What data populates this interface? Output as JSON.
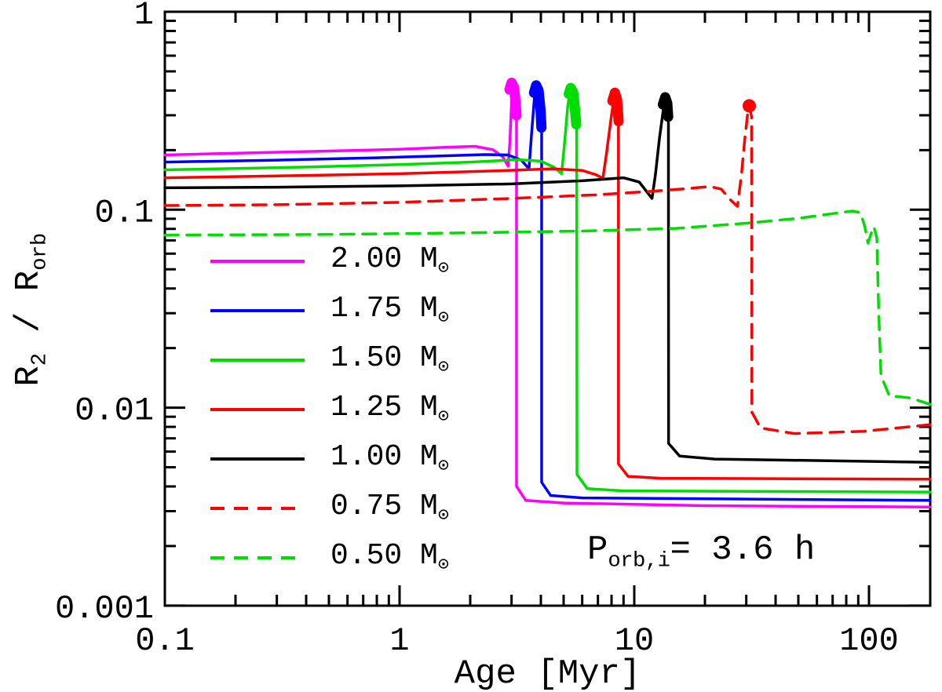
{
  "labels": {
    "x_axis": "Age [Myr]",
    "y_axis_parts": {
      "r1": "R",
      "sub1": "2",
      "mid": " / ",
      "r2": "R",
      "sub2": "orb"
    }
  },
  "annotation": {
    "p": "P",
    "sub": "orb,i",
    "rest": "= 3.6 h"
  },
  "legend": {
    "position": "left-middle",
    "items": [
      {
        "mass": "2.00",
        "unit": "M",
        "unit_sub": "⊙",
        "color": "#ff00ff",
        "dash": "solid"
      },
      {
        "mass": "1.75",
        "unit": "M",
        "unit_sub": "⊙",
        "color": "#0000ff",
        "dash": "solid"
      },
      {
        "mass": "1.50",
        "unit": "M",
        "unit_sub": "⊙",
        "color": "#00dd00",
        "dash": "solid"
      },
      {
        "mass": "1.25",
        "unit": "M",
        "unit_sub": "⊙",
        "color": "#ff0000",
        "dash": "solid"
      },
      {
        "mass": "1.00",
        "unit": "M",
        "unit_sub": "⊙",
        "color": "#000000",
        "dash": "solid"
      },
      {
        "mass": "0.75",
        "unit": "M",
        "unit_sub": "⊙",
        "color": "#ff0000",
        "dash": "dashed"
      },
      {
        "mass": "0.50",
        "unit": "M",
        "unit_sub": "⊙",
        "color": "#00dd00",
        "dash": "dashed"
      }
    ]
  },
  "chart_data": {
    "type": "line",
    "title": "",
    "xlabel": "Age [Myr]",
    "ylabel": "R_2 / R_orb",
    "x_scale": "log",
    "y_scale": "log",
    "xlim": [
      0.1,
      182
    ],
    "ylim": [
      0.001,
      1
    ],
    "grid": false,
    "x_ticks": [
      {
        "label": "0.1",
        "value": 0.1
      },
      {
        "label": "1",
        "value": 1
      },
      {
        "label": "10",
        "value": 10
      },
      {
        "label": "100",
        "value": 100
      }
    ],
    "y_ticks": [
      {
        "label": "1",
        "value": 1
      },
      {
        "label": "0.1",
        "value": 0.1
      },
      {
        "label": "0.01",
        "value": 0.01
      },
      {
        "label": "0.001",
        "value": 0.001
      }
    ],
    "annotation_text": "P_orb,i = 3.6 h",
    "series": [
      {
        "name": "2.00 Msun",
        "color": "#ff00ff",
        "style": "solid",
        "points": [
          [
            0.1,
            0.189
          ],
          [
            0.2,
            0.193
          ],
          [
            0.5,
            0.198
          ],
          [
            1.0,
            0.202
          ],
          [
            1.6,
            0.207
          ],
          [
            2.1,
            0.209
          ],
          [
            2.5,
            0.201
          ],
          [
            2.75,
            0.185
          ],
          [
            2.9,
            0.166
          ],
          [
            2.95,
            0.22
          ],
          [
            3.0,
            0.35
          ],
          [
            3.03,
            0.42
          ],
          [
            3.06,
            0.44
          ],
          [
            3.1,
            0.4
          ],
          [
            3.13,
            0.33
          ],
          [
            3.15,
            0.295
          ],
          [
            3.15,
            0.004
          ],
          [
            3.45,
            0.0034
          ],
          [
            5,
            0.0033
          ],
          [
            20,
            0.0032
          ],
          [
            182,
            0.00315
          ]
        ],
        "blob": [
          [
            2.94,
            0.405
          ],
          [
            3.0,
            0.438
          ],
          [
            3.07,
            0.415
          ],
          [
            3.12,
            0.35
          ],
          [
            3.15,
            0.3
          ]
        ]
      },
      {
        "name": "1.75 Msun",
        "color": "#0000ff",
        "style": "solid",
        "points": [
          [
            0.1,
            0.174
          ],
          [
            0.3,
            0.178
          ],
          [
            0.8,
            0.183
          ],
          [
            1.5,
            0.187
          ],
          [
            2.3,
            0.19
          ],
          [
            2.9,
            0.189
          ],
          [
            3.3,
            0.178
          ],
          [
            3.56,
            0.161
          ],
          [
            3.65,
            0.24
          ],
          [
            3.75,
            0.36
          ],
          [
            3.82,
            0.425
          ],
          [
            3.9,
            0.41
          ],
          [
            3.98,
            0.33
          ],
          [
            4.03,
            0.265
          ],
          [
            4.03,
            0.0042
          ],
          [
            4.4,
            0.0036
          ],
          [
            6,
            0.0035
          ],
          [
            182,
            0.0034
          ]
        ],
        "blob": [
          [
            3.74,
            0.39
          ],
          [
            3.82,
            0.425
          ],
          [
            3.91,
            0.4
          ],
          [
            3.99,
            0.315
          ],
          [
            4.02,
            0.26
          ]
        ]
      },
      {
        "name": "1.50 Msun",
        "color": "#00dd00",
        "style": "solid",
        "points": [
          [
            0.1,
            0.159
          ],
          [
            0.3,
            0.163
          ],
          [
            1,
            0.169
          ],
          [
            2,
            0.174
          ],
          [
            3.2,
            0.179
          ],
          [
            4.0,
            0.176
          ],
          [
            4.55,
            0.164
          ],
          [
            4.9,
            0.152
          ],
          [
            5.05,
            0.22
          ],
          [
            5.2,
            0.33
          ],
          [
            5.35,
            0.41
          ],
          [
            5.45,
            0.4
          ],
          [
            5.58,
            0.33
          ],
          [
            5.68,
            0.265
          ],
          [
            5.7,
            0.0046
          ],
          [
            6.3,
            0.0039
          ],
          [
            9,
            0.0038
          ],
          [
            182,
            0.00375
          ]
        ],
        "blob": [
          [
            5.26,
            0.385
          ],
          [
            5.36,
            0.412
          ],
          [
            5.5,
            0.39
          ],
          [
            5.6,
            0.315
          ],
          [
            5.66,
            0.27
          ]
        ]
      },
      {
        "name": "1.25 Msun",
        "color": "#ff0000",
        "style": "solid",
        "points": [
          [
            0.1,
            0.145
          ],
          [
            0.3,
            0.148
          ],
          [
            1,
            0.152
          ],
          [
            2.5,
            0.157
          ],
          [
            4.5,
            0.161
          ],
          [
            6.0,
            0.158
          ],
          [
            6.9,
            0.15
          ],
          [
            7.35,
            0.144
          ],
          [
            7.6,
            0.19
          ],
          [
            8.0,
            0.3
          ],
          [
            8.25,
            0.385
          ],
          [
            8.4,
            0.37
          ],
          [
            8.5,
            0.315
          ],
          [
            8.56,
            0.28
          ],
          [
            8.56,
            0.0052
          ],
          [
            9.4,
            0.0045
          ],
          [
            13,
            0.0044
          ],
          [
            182,
            0.00435
          ]
        ],
        "blob": [
          [
            8.07,
            0.355
          ],
          [
            8.27,
            0.39
          ],
          [
            8.44,
            0.36
          ],
          [
            8.54,
            0.3
          ],
          [
            8.57,
            0.28
          ]
        ]
      },
      {
        "name": "1.00 Msun",
        "color": "#000000",
        "style": "solid",
        "points": [
          [
            0.1,
            0.129
          ],
          [
            0.3,
            0.13
          ],
          [
            1,
            0.132
          ],
          [
            3,
            0.135
          ],
          [
            6,
            0.14
          ],
          [
            9,
            0.145
          ],
          [
            10.5,
            0.138
          ],
          [
            11.9,
            0.114
          ],
          [
            12.3,
            0.15
          ],
          [
            12.8,
            0.23
          ],
          [
            13.3,
            0.32
          ],
          [
            13.6,
            0.368
          ],
          [
            13.85,
            0.345
          ],
          [
            13.98,
            0.3
          ],
          [
            14.0,
            0.0066
          ],
          [
            15.6,
            0.0057
          ],
          [
            22,
            0.0055
          ],
          [
            182,
            0.0053
          ]
        ],
        "blob": [
          [
            13.25,
            0.34
          ],
          [
            13.55,
            0.37
          ],
          [
            13.82,
            0.345
          ],
          [
            13.95,
            0.295
          ]
        ]
      },
      {
        "name": "0.75 Msun",
        "color": "#ff0000",
        "style": "dashed",
        "points": [
          [
            0.1,
            0.105
          ],
          [
            0.3,
            0.106
          ],
          [
            1,
            0.109
          ],
          [
            3,
            0.114
          ],
          [
            7,
            0.119
          ],
          [
            12,
            0.124
          ],
          [
            17,
            0.128
          ],
          [
            21,
            0.131
          ],
          [
            23.5,
            0.127
          ],
          [
            25.5,
            0.113
          ],
          [
            27.5,
            0.104
          ],
          [
            28.6,
            0.15
          ],
          [
            29.6,
            0.23
          ],
          [
            30.5,
            0.315
          ],
          [
            30.9,
            0.335
          ],
          [
            31.6,
            0.295
          ],
          [
            31.7,
            0.0095
          ],
          [
            34.5,
            0.0079
          ],
          [
            48,
            0.0074
          ],
          [
            95,
            0.0076
          ],
          [
            182,
            0.0082
          ]
        ],
        "dot": [
          30.9,
          0.335
        ]
      },
      {
        "name": "0.50 Msun",
        "color": "#00dd00",
        "style": "dashed",
        "points": [
          [
            0.1,
            0.0745
          ],
          [
            0.5,
            0.075
          ],
          [
            2,
            0.0765
          ],
          [
            6,
            0.078
          ],
          [
            15,
            0.0805
          ],
          [
            30,
            0.0855
          ],
          [
            50,
            0.0905
          ],
          [
            70,
            0.0955
          ],
          [
            85,
            0.0985
          ],
          [
            92,
            0.0965
          ],
          [
            96,
            0.082
          ],
          [
            99,
            0.068
          ],
          [
            102,
            0.0755
          ],
          [
            105,
            0.082
          ],
          [
            108,
            0.072
          ],
          [
            110,
            0.03
          ],
          [
            112.5,
            0.0145
          ],
          [
            122,
            0.0115
          ],
          [
            150,
            0.0112
          ],
          [
            182,
            0.0104
          ]
        ]
      }
    ]
  }
}
